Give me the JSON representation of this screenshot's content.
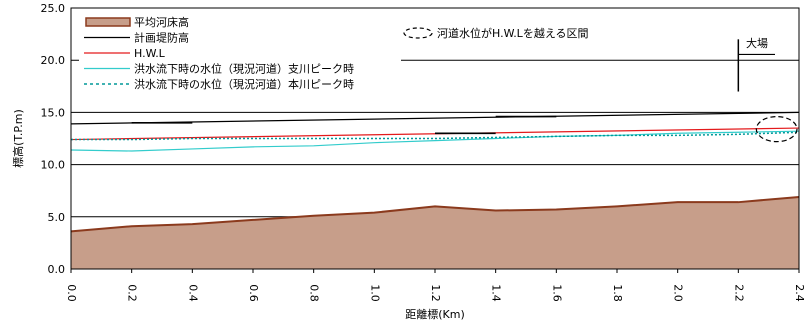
{
  "chart_data": {
    "type": "area",
    "xlabel": "距離標(Km)",
    "ylabel": "標高(T.P.m)",
    "xlim": [
      0.0,
      2.4
    ],
    "ylim": [
      0.0,
      25.0
    ],
    "x_ticks": [
      "0.0",
      "0.2",
      "0.4",
      "0.6",
      "0.8",
      "1.0",
      "1.2",
      "1.4",
      "1.6",
      "1.8",
      "2.0",
      "2.2",
      "2.4"
    ],
    "y_ticks": [
      "0.0",
      "5.0",
      "10.0",
      "15.0",
      "20.0",
      "25.0"
    ],
    "grid": "horizontal",
    "legend_position": "top-left",
    "series": [
      {
        "name": "平均河床高",
        "style": "area",
        "color": "#c79e8a",
        "edge_color": "#8b3a1d",
        "x": [
          0.0,
          0.2,
          0.4,
          0.6,
          0.8,
          1.0,
          1.2,
          1.4,
          1.6,
          1.8,
          2.0,
          2.2,
          2.4
        ],
        "y": [
          3.6,
          4.1,
          4.3,
          4.7,
          5.1,
          5.4,
          6.0,
          5.6,
          5.7,
          6.0,
          6.4,
          6.4,
          6.9
        ]
      },
      {
        "name": "計画堤防高",
        "style": "solid",
        "color": "#000000",
        "x": [
          0.0,
          2.4
        ],
        "y": [
          13.9,
          15.0
        ]
      },
      {
        "name": "H.W.L",
        "style": "solid",
        "color": "#e31a1c",
        "x": [
          0.0,
          2.4
        ],
        "y": [
          12.4,
          13.5
        ]
      },
      {
        "name": "洪水流下時の水位（現況河道）支川ピーク時",
        "style": "solid",
        "color": "#33cccc",
        "x": [
          0.0,
          0.2,
          0.4,
          0.6,
          0.8,
          1.0,
          1.2,
          1.4,
          1.6,
          1.8,
          2.0,
          2.2,
          2.4
        ],
        "y": [
          11.4,
          11.3,
          11.5,
          11.7,
          11.8,
          12.1,
          12.3,
          12.5,
          12.7,
          12.8,
          13.0,
          13.1,
          13.2
        ]
      },
      {
        "name": "洪水流下時の水位（現況河道）本川ピーク時",
        "style": "dotted",
        "color": "#009999",
        "x": [
          0.0,
          0.2,
          0.4,
          0.6,
          0.8,
          1.0,
          1.2,
          1.4,
          1.6,
          1.8,
          2.0,
          2.2,
          2.4
        ],
        "y": [
          12.4,
          12.4,
          12.5,
          12.5,
          12.5,
          12.5,
          12.5,
          12.6,
          12.7,
          12.8,
          12.8,
          12.9,
          13.1
        ]
      }
    ],
    "structure_marks": [
      {
        "x": [
          0.2,
          0.4
        ],
        "y": 14.0
      },
      {
        "x": [
          1.2,
          1.4
        ],
        "y": 13.0
      },
      {
        "x": [
          1.4,
          1.6
        ],
        "y": 14.6
      }
    ],
    "annotations": [
      {
        "label": "河道水位がH.W.Lを越える区間",
        "marker": "dashed-ellipse",
        "region_x": [
          2.2,
          2.4
        ],
        "region_y": [
          12.2,
          14.6
        ]
      },
      {
        "label": "大場",
        "x": 2.2,
        "y_range": [
          17.0,
          22.0
        ]
      }
    ]
  }
}
